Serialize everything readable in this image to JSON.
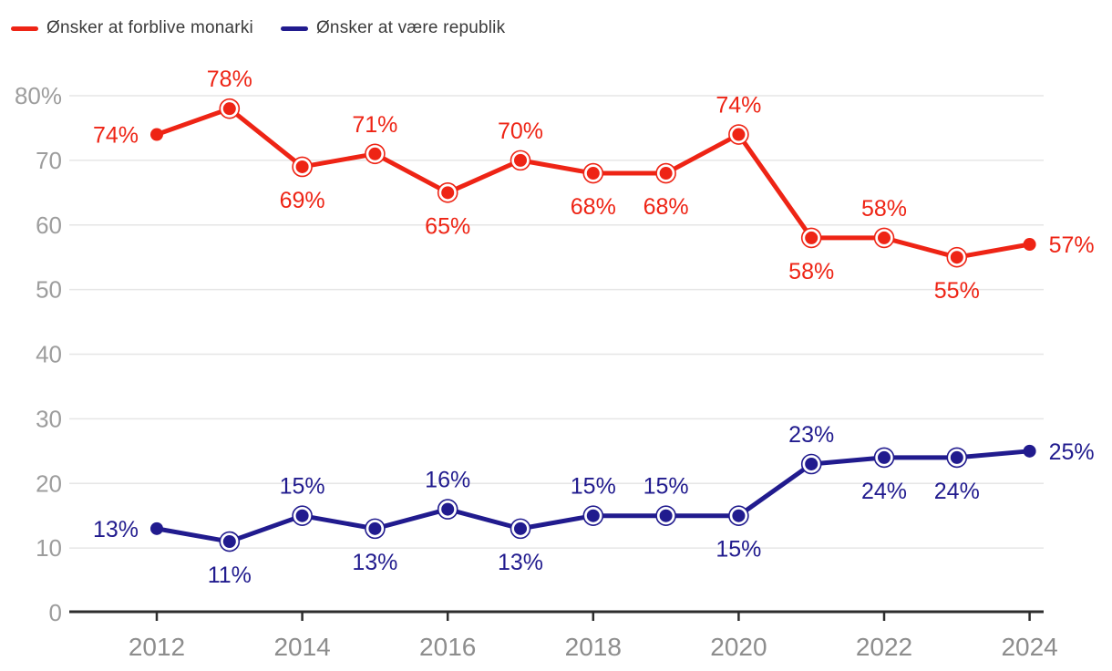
{
  "legend": {
    "items": [
      {
        "label": "Ønsker at forblive monarki"
      },
      {
        "label": "Ønsker at være republik"
      }
    ]
  },
  "chart_data": {
    "type": "line",
    "x": [
      2012,
      2013,
      2014,
      2015,
      2016,
      2017,
      2018,
      2019,
      2020,
      2021,
      2022,
      2023,
      2024
    ],
    "series": [
      {
        "name": "Ønsker at forblive monarki",
        "color": "#ee2415",
        "values": [
          74,
          78,
          69,
          71,
          65,
          70,
          68,
          68,
          74,
          58,
          58,
          55,
          57
        ],
        "label_positions": [
          "left",
          "above",
          "below",
          "above",
          "below",
          "above",
          "below",
          "below",
          "above",
          "below",
          "above",
          "below",
          "right"
        ]
      },
      {
        "name": "Ønsker at være republik",
        "color": "#211b8e",
        "values": [
          13,
          11,
          15,
          13,
          16,
          13,
          15,
          15,
          15,
          23,
          24,
          24,
          25
        ],
        "label_positions": [
          "left",
          "below",
          "above",
          "below",
          "above",
          "below",
          "above",
          "above",
          "below",
          "above",
          "below",
          "below",
          "right"
        ]
      }
    ],
    "unit": "%",
    "ylim": [
      0,
      80
    ],
    "yticks": [
      0,
      10,
      20,
      30,
      40,
      50,
      60,
      70,
      80
    ],
    "ytick_labels": [
      "0",
      "10",
      "20",
      "30",
      "40",
      "50",
      "60",
      "70",
      "80%"
    ],
    "xticks": [
      2012,
      2014,
      2016,
      2018,
      2020,
      2022,
      2024
    ],
    "xtick_labels": [
      "2012",
      "2014",
      "2016",
      "2018",
      "2020",
      "2022",
      "2024"
    ],
    "grid": "horizontal",
    "legend_position": "top-left"
  },
  "colors": {
    "monarchy_red": "#ee2415",
    "republic_blue": "#211b8e",
    "gridline": "#e6e6e6",
    "axis": "#2d2d2d",
    "y_tick_label": "#9d9d9d",
    "x_tick_label": "#8d8d8d",
    "legend_text": "#3b3b3b",
    "background": "#ffffff"
  }
}
